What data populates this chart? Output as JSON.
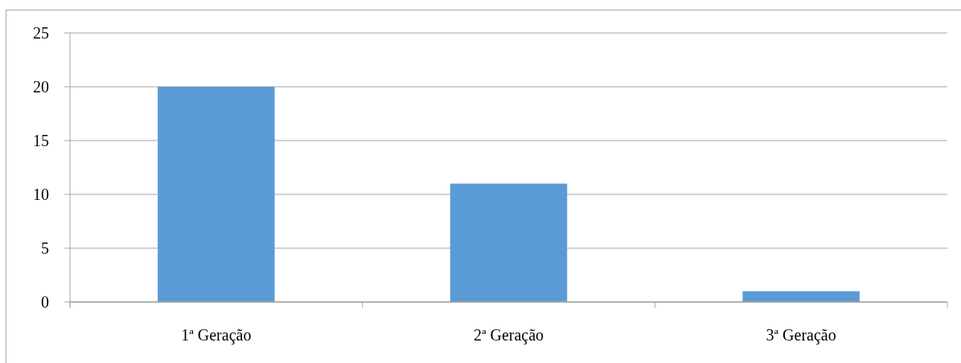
{
  "chart_data": {
    "type": "bar",
    "categories": [
      "1ª Geração",
      "2ª Geração",
      "3ª Geração"
    ],
    "values": [
      20,
      11,
      1
    ],
    "color": "#5b9bd5",
    "ylim": [
      0,
      25
    ],
    "yticks": [
      0,
      5,
      10,
      15,
      20,
      25
    ],
    "grid": "y"
  }
}
